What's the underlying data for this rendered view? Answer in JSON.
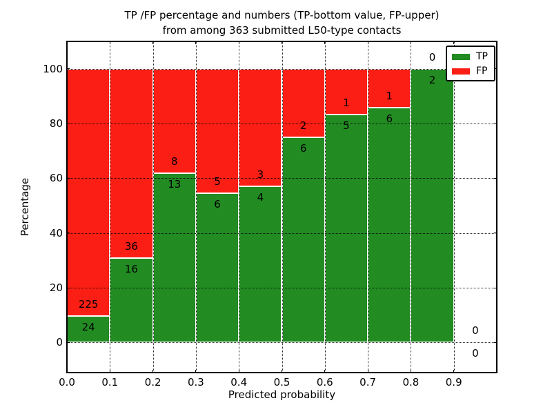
{
  "title": {
    "line1": "TP /FP percentage and numbers (TP-bottom value, FP-upper)",
    "line2": "from among 363 submitted L50-type contacts"
  },
  "axes": {
    "xlabel": "Predicted probability",
    "ylabel": "Percentage",
    "x_tick_labels": [
      "0.0",
      "0.1",
      "0.2",
      "0.3",
      "0.4",
      "0.5",
      "0.6",
      "0.7",
      "0.8",
      "0.9"
    ],
    "y_tick_labels": [
      "0",
      "20",
      "40",
      "60",
      "80",
      "100"
    ]
  },
  "legend": {
    "items": [
      {
        "label": "TP",
        "color": "#228b22"
      },
      {
        "label": "FP",
        "color": "#fa1e14"
      }
    ]
  },
  "chart_data": {
    "type": "bar",
    "subtype": "stacked-100-percent-histogram",
    "title": "TP /FP percentage and numbers (TP-bottom value, FP-upper) from among 363 submitted L50-type contacts",
    "xlabel": "Predicted probability",
    "ylabel": "Percentage",
    "xlim": [
      0.0,
      1.0
    ],
    "ylim": [
      -11,
      110
    ],
    "x_bin_edges": [
      0.0,
      0.1,
      0.2,
      0.3,
      0.4,
      0.5,
      0.6,
      0.7,
      0.8,
      0.9,
      1.0
    ],
    "x_ticks": [
      0.0,
      0.1,
      0.2,
      0.3,
      0.4,
      0.5,
      0.6,
      0.7,
      0.8,
      0.9
    ],
    "y_ticks": [
      0,
      20,
      40,
      60,
      80,
      100
    ],
    "series": [
      {
        "name": "TP",
        "color": "#228b22",
        "counts": [
          24,
          16,
          13,
          6,
          4,
          6,
          5,
          6,
          2,
          0
        ]
      },
      {
        "name": "FP",
        "color": "#fa1e14",
        "counts": [
          225,
          36,
          8,
          5,
          3,
          2,
          1,
          1,
          0,
          0
        ]
      }
    ],
    "tp_percentages": [
      9.6,
      30.8,
      61.9,
      54.5,
      57.1,
      75.0,
      83.3,
      85.7,
      100.0,
      null
    ],
    "total_contacts": 363,
    "grid": {
      "style": "dotted",
      "axes": "both"
    },
    "legend_position": "upper right"
  }
}
